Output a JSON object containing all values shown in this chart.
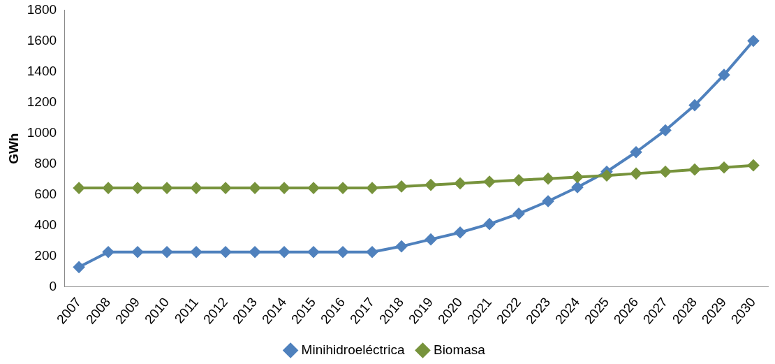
{
  "chart_data": {
    "type": "line",
    "ylabel": "GWh",
    "categories": [
      "2007",
      "2008",
      "2009",
      "2010",
      "2011",
      "2012",
      "2013",
      "2014",
      "2015",
      "2016",
      "2017",
      "2018",
      "2019",
      "2020",
      "2021",
      "2022",
      "2023",
      "2024",
      "2025",
      "2026",
      "2027",
      "2028",
      "2029",
      "2030"
    ],
    "series": [
      {
        "name": "Minihidroeléctrica",
        "color": "#4f81bd",
        "values": [
          130,
          228,
          228,
          228,
          228,
          228,
          228,
          228,
          228,
          228,
          228,
          265,
          310,
          355,
          410,
          477,
          558,
          649,
          750,
          877,
          1019,
          1182,
          1379,
          1600
        ]
      },
      {
        "name": "Biomasa",
        "color": "#77933c",
        "values": [
          644,
          644,
          644,
          644,
          644,
          644,
          644,
          644,
          644,
          644,
          644,
          654,
          664,
          674,
          685,
          695,
          705,
          715,
          725,
          738,
          750,
          764,
          777,
          791
        ]
      }
    ],
    "ylim": [
      0,
      1800
    ],
    "yticks": [
      0,
      200,
      400,
      600,
      800,
      1000,
      1200,
      1400,
      1600,
      1800
    ],
    "grid": false,
    "legend": "bottom",
    "marker": "diamond",
    "line_style": "solid"
  }
}
